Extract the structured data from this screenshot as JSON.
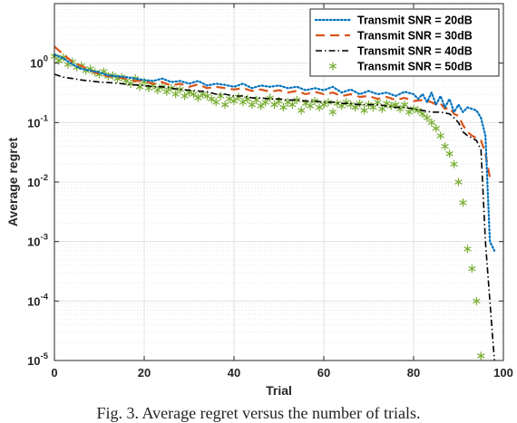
{
  "caption": "Fig. 3.   Average regret versus the number of trials.",
  "chart_data": {
    "type": "line",
    "xlabel": "Trial",
    "ylabel": "Average regret",
    "xlim": [
      0,
      100
    ],
    "ylim": [
      1e-05,
      10
    ],
    "yscale": "log",
    "grid": true,
    "minor_grid": true,
    "legend_position": "top-right",
    "xticks": [
      0,
      20,
      40,
      60,
      80,
      100
    ],
    "xtick_labels": [
      "0",
      "20",
      "40",
      "60",
      "80",
      "100"
    ],
    "yticks": [
      1e-05,
      0.0001,
      0.001,
      0.01,
      0.1,
      1
    ],
    "ytick_labels": [
      {
        "base": "10",
        "exp": "-5"
      },
      {
        "base": "10",
        "exp": "-4"
      },
      {
        "base": "10",
        "exp": "-3"
      },
      {
        "base": "10",
        "exp": "-2"
      },
      {
        "base": "10",
        "exp": "-1"
      },
      {
        "base": "10",
        "exp": "0"
      }
    ],
    "series": [
      {
        "name": "Transmit SNR = 20dB",
        "color": "#0072BD",
        "style": "dotted",
        "x": [
          0,
          2,
          4,
          6,
          8,
          10,
          12,
          14,
          16,
          18,
          20,
          22,
          24,
          26,
          28,
          30,
          32,
          34,
          36,
          38,
          40,
          42,
          44,
          46,
          48,
          50,
          52,
          54,
          56,
          58,
          60,
          62,
          64,
          66,
          68,
          70,
          72,
          74,
          76,
          78,
          80,
          81,
          82,
          83,
          84,
          85,
          86,
          87,
          88,
          89,
          90,
          91,
          92,
          93,
          94,
          95,
          96,
          97,
          98
        ],
        "y": [
          1.4,
          1.2,
          0.95,
          0.8,
          0.75,
          0.7,
          0.62,
          0.6,
          0.58,
          0.55,
          0.52,
          0.5,
          0.55,
          0.48,
          0.5,
          0.45,
          0.5,
          0.42,
          0.45,
          0.43,
          0.4,
          0.45,
          0.38,
          0.42,
          0.4,
          0.42,
          0.38,
          0.4,
          0.35,
          0.38,
          0.35,
          0.4,
          0.32,
          0.36,
          0.3,
          0.34,
          0.3,
          0.32,
          0.28,
          0.33,
          0.3,
          0.25,
          0.3,
          0.22,
          0.32,
          0.2,
          0.28,
          0.18,
          0.25,
          0.15,
          0.2,
          0.15,
          0.18,
          0.17,
          0.16,
          0.12,
          0.06,
          0.001,
          0.0007
        ]
      },
      {
        "name": "Transmit SNR = 30dB",
        "color": "#D95319",
        "style": "dashed",
        "x": [
          0,
          2,
          4,
          6,
          8,
          10,
          12,
          14,
          16,
          18,
          20,
          22,
          24,
          26,
          28,
          30,
          32,
          34,
          36,
          38,
          40,
          42,
          44,
          46,
          48,
          50,
          52,
          54,
          56,
          58,
          60,
          62,
          64,
          66,
          68,
          70,
          72,
          74,
          76,
          78,
          80,
          82,
          84,
          85,
          86,
          87,
          88,
          89,
          90,
          91,
          92,
          93,
          94,
          95,
          96,
          97
        ],
        "y": [
          1.9,
          1.4,
          1.05,
          0.9,
          0.75,
          0.65,
          0.6,
          0.58,
          0.55,
          0.5,
          0.5,
          0.45,
          0.48,
          0.42,
          0.45,
          0.4,
          0.44,
          0.38,
          0.4,
          0.38,
          0.36,
          0.38,
          0.34,
          0.36,
          0.33,
          0.35,
          0.32,
          0.34,
          0.3,
          0.33,
          0.3,
          0.32,
          0.28,
          0.3,
          0.27,
          0.28,
          0.25,
          0.27,
          0.24,
          0.26,
          0.23,
          0.24,
          0.22,
          0.2,
          0.21,
          0.17,
          0.18,
          0.14,
          0.13,
          0.09,
          0.07,
          0.06,
          0.055,
          0.05,
          0.03,
          0.012
        ]
      },
      {
        "name": "Transmit SNR = 40dB",
        "color": "#000000",
        "style": "dashdot",
        "x": [
          0,
          2,
          4,
          6,
          8,
          10,
          12,
          14,
          16,
          18,
          20,
          22,
          24,
          26,
          28,
          30,
          32,
          34,
          36,
          38,
          40,
          42,
          44,
          46,
          48,
          50,
          52,
          54,
          56,
          58,
          60,
          62,
          64,
          66,
          68,
          70,
          72,
          74,
          76,
          78,
          80,
          82,
          84,
          86,
          88,
          89,
          90,
          91,
          92,
          93,
          94,
          95,
          96,
          97,
          98
        ],
        "y": [
          0.65,
          0.58,
          0.55,
          0.52,
          0.5,
          0.48,
          0.47,
          0.46,
          0.44,
          0.43,
          0.42,
          0.4,
          0.4,
          0.38,
          0.36,
          0.35,
          0.34,
          0.33,
          0.3,
          0.3,
          0.28,
          0.28,
          0.26,
          0.26,
          0.25,
          0.25,
          0.24,
          0.24,
          0.23,
          0.23,
          0.22,
          0.22,
          0.21,
          0.21,
          0.2,
          0.2,
          0.2,
          0.19,
          0.18,
          0.18,
          0.17,
          0.16,
          0.15,
          0.15,
          0.14,
          0.12,
          0.1,
          0.07,
          0.06,
          0.055,
          0.05,
          0.035,
          0.001,
          0.0001,
          1e-05
        ]
      },
      {
        "name": "Transmit SNR = 50dB",
        "color": "#77AC30",
        "style": "asterisk",
        "x": [
          0,
          1,
          2,
          3,
          4,
          5,
          6,
          7,
          8,
          9,
          10,
          11,
          12,
          13,
          14,
          15,
          16,
          17,
          18,
          19,
          20,
          21,
          22,
          23,
          24,
          25,
          26,
          27,
          28,
          29,
          30,
          31,
          32,
          33,
          34,
          35,
          36,
          37,
          38,
          39,
          40,
          41,
          42,
          43,
          44,
          45,
          46,
          47,
          48,
          49,
          50,
          51,
          52,
          53,
          54,
          55,
          56,
          57,
          58,
          59,
          60,
          61,
          62,
          63,
          64,
          65,
          66,
          67,
          68,
          69,
          70,
          71,
          72,
          73,
          74,
          75,
          76,
          77,
          78,
          79,
          80,
          81,
          82,
          83,
          84,
          85,
          86,
          87,
          88,
          89,
          90,
          91,
          92,
          93,
          94,
          95
        ],
        "y": [
          1.3,
          1.1,
          1.25,
          0.95,
          1.05,
          0.85,
          0.9,
          0.75,
          0.8,
          0.7,
          0.65,
          0.72,
          0.6,
          0.62,
          0.55,
          0.58,
          0.5,
          0.45,
          0.55,
          0.4,
          0.48,
          0.38,
          0.42,
          0.35,
          0.4,
          0.33,
          0.38,
          0.3,
          0.36,
          0.28,
          0.32,
          0.3,
          0.26,
          0.3,
          0.28,
          0.25,
          0.22,
          0.28,
          0.2,
          0.25,
          0.23,
          0.27,
          0.22,
          0.25,
          0.2,
          0.24,
          0.19,
          0.22,
          0.26,
          0.2,
          0.23,
          0.18,
          0.22,
          0.2,
          0.24,
          0.16,
          0.21,
          0.19,
          0.23,
          0.18,
          0.2,
          0.22,
          0.15,
          0.21,
          0.19,
          0.22,
          0.2,
          0.18,
          0.21,
          0.16,
          0.2,
          0.18,
          0.22,
          0.17,
          0.21,
          0.19,
          0.2,
          0.17,
          0.2,
          0.15,
          0.17,
          0.16,
          0.14,
          0.12,
          0.1,
          0.08,
          0.06,
          0.04,
          0.03,
          0.02,
          0.01,
          0.0045,
          0.00075,
          0.00035,
          0.0001,
          1.2e-05
        ]
      }
    ]
  }
}
